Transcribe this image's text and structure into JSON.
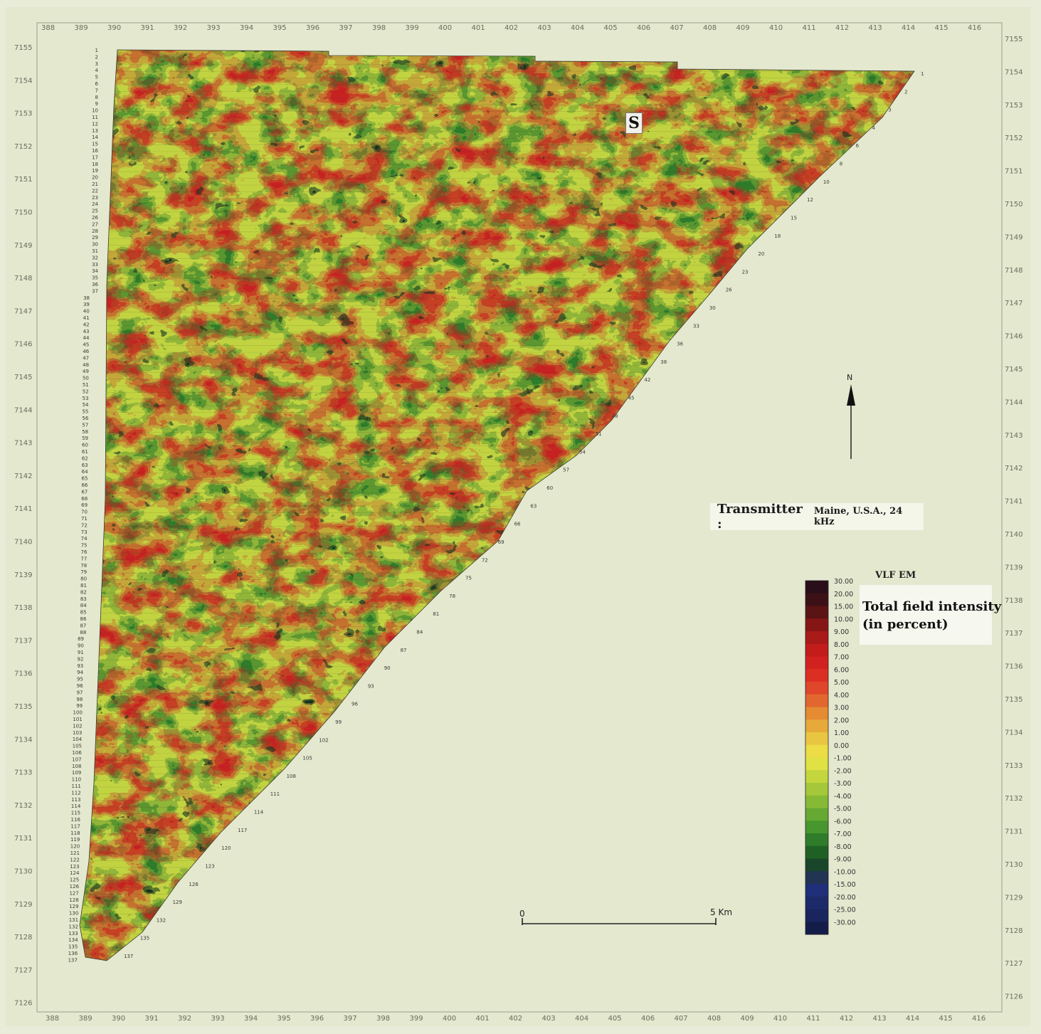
{
  "axes": {
    "easting_ticks": [
      "388",
      "389",
      "390",
      "391",
      "392",
      "393",
      "394",
      "395",
      "396",
      "397",
      "398",
      "399",
      "400",
      "401",
      "402",
      "403",
      "404",
      "405",
      "406",
      "407",
      "408",
      "409",
      "410",
      "411",
      "412",
      "413",
      "414",
      "415",
      "416"
    ],
    "northing_ticks": [
      "7155",
      "7154",
      "7153",
      "7152",
      "7151",
      "7150",
      "7149",
      "7148",
      "7147",
      "7146",
      "7145",
      "7144",
      "7143",
      "7142",
      "7141",
      "7140",
      "7139",
      "7138",
      "7137",
      "7136",
      "7135",
      "7134",
      "7133",
      "7132",
      "7131",
      "7130",
      "7129",
      "7128",
      "7127",
      "7126"
    ]
  },
  "site_marker": "S",
  "transmitter": {
    "label": "Transmitter :",
    "value": "Maine, U.S.A., 24 kHz"
  },
  "north_arrow": {
    "label": "N"
  },
  "scale_bar": {
    "start_label": "0",
    "end_label": "5 Km"
  },
  "legend": {
    "title": "VLF EM",
    "caption_line1": "Total field intensity",
    "caption_line2": "(in percent)",
    "classes": [
      {
        "label": "30.00",
        "color": "#2a0e1a"
      },
      {
        "label": "20.00",
        "color": "#3b1117"
      },
      {
        "label": "15.00",
        "color": "#5a1414"
      },
      {
        "label": "10.00",
        "color": "#861616"
      },
      {
        "label": "9.00",
        "color": "#a81a18"
      },
      {
        "label": "8.00",
        "color": "#c21d1b"
      },
      {
        "label": "7.00",
        "color": "#d2221f"
      },
      {
        "label": "6.00",
        "color": "#dc2f24"
      },
      {
        "label": "5.00",
        "color": "#e0462a"
      },
      {
        "label": "4.00",
        "color": "#e2672e"
      },
      {
        "label": "3.00",
        "color": "#e48b33"
      },
      {
        "label": "2.00",
        "color": "#e6a93a"
      },
      {
        "label": "1.00",
        "color": "#e9c642"
      },
      {
        "label": "0.00",
        "color": "#ecdc46"
      },
      {
        "label": "-1.00",
        "color": "#dfe144"
      },
      {
        "label": "-2.00",
        "color": "#c4d63e"
      },
      {
        "label": "-3.00",
        "color": "#a4c83a"
      },
      {
        "label": "-4.00",
        "color": "#86ba36"
      },
      {
        "label": "-5.00",
        "color": "#66a932"
      },
      {
        "label": "-6.00",
        "color": "#48962e"
      },
      {
        "label": "-7.00",
        "color": "#2f7c2a"
      },
      {
        "label": "-8.00",
        "color": "#1f6124"
      },
      {
        "label": "-9.00",
        "color": "#19462a"
      },
      {
        "label": "-10.00",
        "color": "#213452"
      },
      {
        "label": "-15.00",
        "color": "#1f2f7a"
      },
      {
        "label": "-20.00",
        "color": "#1c2a6a"
      },
      {
        "label": "-25.00",
        "color": "#19255c"
      },
      {
        "label": "-30.00",
        "color": "#141d4a"
      }
    ]
  },
  "flight_lines": {
    "left_numbers": [
      "1",
      "2",
      "3",
      "4",
      "5",
      "6",
      "7",
      "8",
      "9",
      "10",
      "11",
      "12",
      "13",
      "14",
      "15",
      "16",
      "17",
      "18",
      "19",
      "20",
      "21",
      "22",
      "23",
      "24",
      "25",
      "26",
      "27",
      "28",
      "29",
      "30",
      "31",
      "32",
      "33",
      "34",
      "35",
      "36",
      "37",
      "38",
      "39",
      "40",
      "41",
      "42",
      "43",
      "44",
      "45",
      "46",
      "47",
      "48",
      "49",
      "50",
      "51",
      "52",
      "53",
      "54",
      "55",
      "56",
      "57",
      "58",
      "59",
      "60",
      "61",
      "62",
      "63",
      "64",
      "65",
      "66",
      "67",
      "68",
      "69",
      "70",
      "71",
      "72",
      "73",
      "74",
      "75",
      "76",
      "77",
      "78",
      "79",
      "80",
      "81",
      "82",
      "83",
      "84",
      "85",
      "86",
      "87",
      "88",
      "89",
      "90",
      "91",
      "92",
      "93",
      "94",
      "95",
      "96",
      "97",
      "98",
      "99",
      "100",
      "101",
      "102",
      "103",
      "104",
      "105",
      "106",
      "107",
      "108",
      "109",
      "110",
      "111",
      "112",
      "113",
      "114",
      "115",
      "116",
      "117",
      "118",
      "119",
      "120",
      "121",
      "122",
      "123",
      "124",
      "125",
      "126",
      "127",
      "128",
      "129",
      "130",
      "131",
      "132",
      "133",
      "134",
      "135",
      "136",
      "137"
    ],
    "right_numbers": [
      "1",
      "2",
      "3",
      "4",
      "6",
      "8",
      "10",
      "12",
      "15",
      "18",
      "20",
      "23",
      "26",
      "30",
      "33",
      "36",
      "38",
      "42",
      "45",
      "48",
      "51",
      "54",
      "57",
      "60",
      "63",
      "66",
      "69",
      "72",
      "75",
      "78",
      "81",
      "84",
      "87",
      "90",
      "93",
      "96",
      "99",
      "102",
      "105",
      "108",
      "111",
      "114",
      "117",
      "120",
      "123",
      "126",
      "129",
      "132",
      "135",
      "137"
    ]
  }
}
